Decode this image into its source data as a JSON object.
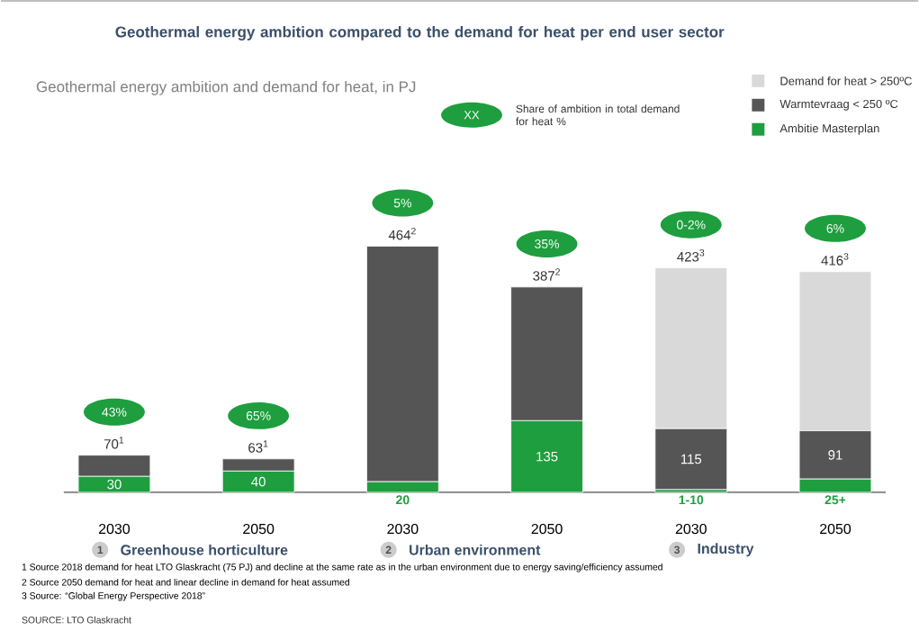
{
  "chart_data": {
    "type": "bar",
    "stacked": true,
    "title": "Geothermal energy ambition compared to the demand for heat per end user sector",
    "subtitle": "Geothermal energy ambition and demand for heat, in PJ",
    "categories": [
      "2030",
      "2050",
      "2030",
      "2050",
      "2030",
      "2050"
    ],
    "series": [
      {
        "name": "Ambitie Masterplan",
        "color": "#1e9e3e",
        "values": [
          30,
          40,
          20,
          135,
          5,
          25
        ],
        "value_labels": [
          "30",
          "40",
          "20",
          "135",
          "1-10",
          "25+"
        ]
      },
      {
        "name": "Warmtevraag < 250 ºC",
        "color": "#555555",
        "values": [
          40,
          23,
          444,
          252,
          115,
          91
        ],
        "value_labels": [
          null,
          null,
          null,
          null,
          "115",
          "91"
        ]
      },
      {
        "name": "Demand for heat > 250ºC",
        "color": "#d9d9d9",
        "values": [
          0,
          0,
          0,
          0,
          303,
          300
        ]
      }
    ],
    "totals": [
      "70$^{1}$",
      "63$^{1}$",
      "464$^{2}$",
      "387$^{2}$",
      "423$^{3}$",
      "416$^{3}$"
    ],
    "legend": "top right",
    "annotations": [
      "43%",
      "65%",
      "5%",
      "35%",
      "0-2%",
      "6%",
      "XX",
      "Share of ambition in total demand for heat %",
      "1",
      "Greenhouse horticulture",
      "2",
      "Urban environment",
      "3",
      "Industry",
      "1 Source 2018 demand for heat LTO Glaskracht (75 PJ) and decline at the same rate as in the urban environment due to energy saving/efficiency assumed",
      "2 Source 2050 demand for heat and linear decline in demand for heat assumed",
      "3 Source: “Global Energy Perspective 2018”",
      "SOURCE: LTO Glaskracht"
    ]
  }
}
